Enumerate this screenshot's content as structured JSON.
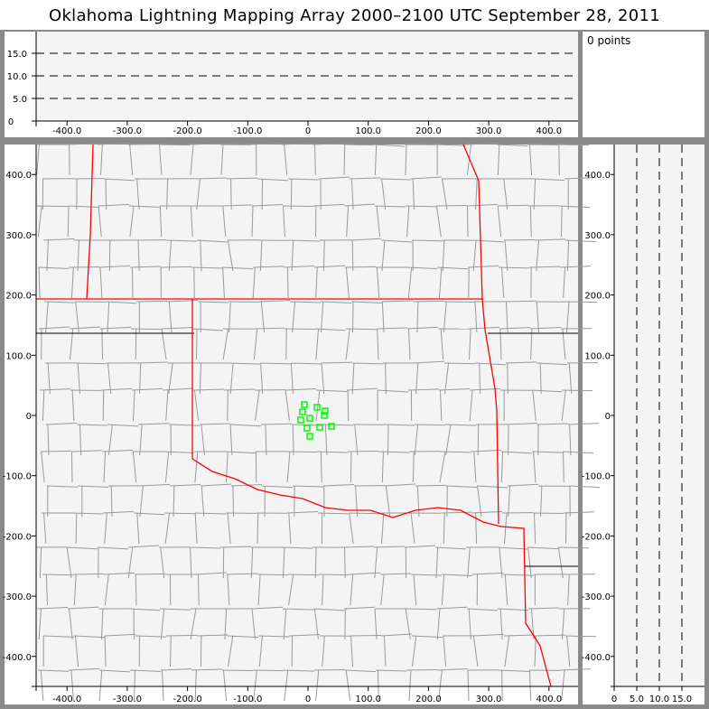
{
  "title": "Oklahoma Lightning Mapping Array   2000–2100 UTC  September 28, 2011",
  "point_count_label": "0 points",
  "colors": {
    "border": "#8a8a8a",
    "plot_bg": "#f4f4f4",
    "county": "#999999",
    "state": "#ff0000",
    "points": "#00ff00"
  },
  "axes": {
    "x_ticks": [
      "-400.0",
      "-300.0",
      "-200.0",
      "-100.0",
      "0",
      "100.0",
      "200.0",
      "300.0",
      "400.0"
    ],
    "y_ticks": [
      "400.0",
      "300.0",
      "200.0",
      "100.0",
      "0",
      "-100.0",
      "-200.0",
      "-300.0",
      "-400.0"
    ],
    "alt_ticks": [
      "0",
      "5.0",
      "10.0",
      "15.0"
    ]
  },
  "chart_data": {
    "type": "scatter",
    "xlim": [
      -450,
      445
    ],
    "ylim": [
      -450,
      450
    ],
    "alt_lim": [
      0,
      20
    ],
    "points": [
      [
        -6,
        18
      ],
      [
        15,
        13.5
      ],
      [
        28.5,
        7.5
      ],
      [
        -9,
        6
      ],
      [
        3,
        -4.5
      ],
      [
        -12,
        -7.5
      ],
      [
        27,
        0
      ],
      [
        -1.5,
        -21
      ],
      [
        19.5,
        -19.5
      ],
      [
        39,
        -18
      ],
      [
        3,
        -34.5
      ]
    ]
  }
}
